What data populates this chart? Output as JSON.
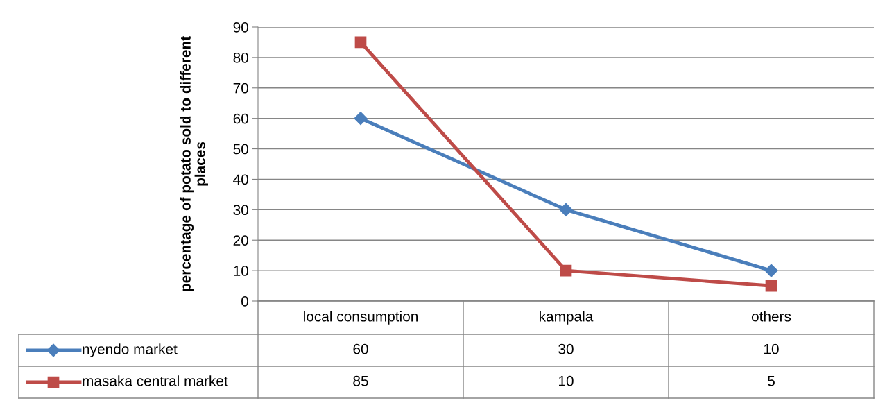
{
  "chart_data": {
    "type": "line",
    "ylabel": "percentage of potato sold to different\nplaces",
    "categories": [
      "local consumption",
      "kampala",
      "others"
    ],
    "series": [
      {
        "name": "nyendo market",
        "color": "#4a7ebb",
        "marker": "diamond",
        "values": [
          60,
          30,
          10
        ]
      },
      {
        "name": "masaka central market",
        "color": "#be4b48",
        "marker": "square",
        "values": [
          85,
          10,
          5
        ]
      }
    ],
    "ylim": [
      0,
      90
    ],
    "yticks": [
      0,
      10,
      20,
      30,
      40,
      50,
      60,
      70,
      80,
      90
    ],
    "grid": "y",
    "legend": "bottom left",
    "data_labels": true,
    "line_style": "solid"
  }
}
